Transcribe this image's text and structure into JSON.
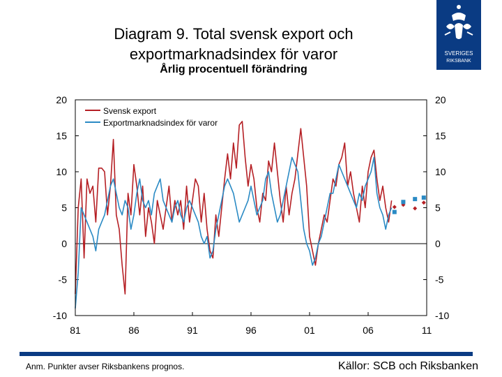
{
  "header": {
    "title_line1": "Diagram 9. Total svensk export och",
    "title_line2": "exportmarknadsindex för varor",
    "subtitle": "Årlig procentuell förändring"
  },
  "logo": {
    "icon": "riksbank-crest-icon",
    "line1": "SVERIGES",
    "line2": "RIKSBANK",
    "color": "#0a3b83"
  },
  "footer": {
    "note": "Anm. Punkter avser Riksbankens prognos.",
    "source": "Källor: SCB och Riksbanken"
  },
  "chart_data": {
    "type": "line",
    "xlim": [
      1981,
      2011
    ],
    "ylim": [
      -10,
      20
    ],
    "y_ticks": [
      "20",
      "15",
      "10",
      "5",
      "0",
      "-5",
      "-10"
    ],
    "y_tick_values": [
      20,
      15,
      10,
      5,
      0,
      -5,
      -10
    ],
    "x_ticks": [
      "81",
      "86",
      "91",
      "96",
      "01",
      "06",
      "11"
    ],
    "x_tick_values": [
      1981,
      1986,
      1991,
      1996,
      2001,
      2006,
      2011
    ],
    "legend_position": "top-left",
    "series": [
      {
        "name": "Svensk export",
        "color": "#b51f24",
        "x": [
          1981.0,
          1981.25,
          1981.5,
          1981.75,
          1982.0,
          1982.25,
          1982.5,
          1982.75,
          1983.0,
          1983.25,
          1983.5,
          1983.75,
          1984.0,
          1984.25,
          1984.5,
          1984.75,
          1985.0,
          1985.25,
          1985.5,
          1985.75,
          1986.0,
          1986.25,
          1986.5,
          1986.75,
          1987.0,
          1987.25,
          1987.5,
          1987.75,
          1988.0,
          1988.25,
          1988.5,
          1988.75,
          1989.0,
          1989.25,
          1989.5,
          1989.75,
          1990.0,
          1990.25,
          1990.5,
          1990.75,
          1991.0,
          1991.25,
          1991.5,
          1991.75,
          1992.0,
          1992.25,
          1992.5,
          1992.75,
          1993.0,
          1993.25,
          1993.5,
          1993.75,
          1994.0,
          1994.25,
          1994.5,
          1994.75,
          1995.0,
          1995.25,
          1995.5,
          1995.75,
          1996.0,
          1996.25,
          1996.5,
          1996.75,
          1997.0,
          1997.25,
          1997.5,
          1997.75,
          1998.0,
          1998.25,
          1998.5,
          1998.75,
          1999.0,
          1999.25,
          1999.5,
          1999.75,
          2000.0,
          2000.25,
          2000.5,
          2000.75,
          2001.0,
          2001.25,
          2001.5,
          2001.75,
          2002.0,
          2002.25,
          2002.5,
          2002.75,
          2003.0,
          2003.25,
          2003.5,
          2003.75,
          2004.0,
          2004.25,
          2004.5,
          2004.75,
          2005.0,
          2005.25,
          2005.5,
          2005.75,
          2006.0,
          2006.25,
          2006.5,
          2006.75,
          2007.0,
          2007.25,
          2007.5,
          2007.75,
          2008.0
        ],
        "values": [
          -7,
          5,
          9,
          -2,
          9,
          7,
          8,
          3,
          10.5,
          10.5,
          10,
          4,
          8,
          14.5,
          4,
          2,
          -3,
          -7,
          7,
          4,
          11,
          8,
          4,
          8,
          1,
          5,
          3,
          0,
          6,
          4,
          2,
          5,
          8,
          3,
          6,
          4,
          6,
          2,
          8,
          3,
          6,
          9,
          8,
          3,
          7,
          2,
          -1,
          -2,
          4,
          1,
          5,
          9,
          12.5,
          9,
          14,
          10.5,
          16.5,
          17,
          12,
          8,
          11,
          9,
          5,
          3,
          7,
          6,
          11.5,
          10,
          14,
          10,
          6,
          3,
          8,
          4,
          7,
          9,
          12.5,
          16,
          12,
          8,
          1,
          -1,
          -3,
          0,
          2,
          4,
          3,
          6,
          9,
          8,
          11,
          12,
          14,
          8,
          10,
          7,
          5,
          3,
          8,
          5,
          10,
          12,
          13,
          9,
          6,
          8,
          5,
          3,
          6
        ]
      },
      {
        "name": "Exportmarknadsindex för varor",
        "color": "#2a8ac4",
        "x": [
          1981.0,
          1981.25,
          1981.5,
          1981.75,
          1982.0,
          1982.25,
          1982.5,
          1982.75,
          1983.0,
          1983.25,
          1983.5,
          1983.75,
          1984.0,
          1984.25,
          1984.5,
          1984.75,
          1985.0,
          1985.25,
          1985.5,
          1985.75,
          1986.0,
          1986.25,
          1986.5,
          1986.75,
          1987.0,
          1987.25,
          1987.5,
          1987.75,
          1988.0,
          1988.25,
          1988.5,
          1988.75,
          1989.0,
          1989.25,
          1989.5,
          1989.75,
          1990.0,
          1990.25,
          1990.5,
          1990.75,
          1991.0,
          1991.25,
          1991.5,
          1991.75,
          1992.0,
          1992.25,
          1992.5,
          1992.75,
          1993.0,
          1993.25,
          1993.5,
          1993.75,
          1994.0,
          1994.25,
          1994.5,
          1994.75,
          1995.0,
          1995.25,
          1995.5,
          1995.75,
          1996.0,
          1996.25,
          1996.5,
          1996.75,
          1997.0,
          1997.25,
          1997.5,
          1997.75,
          1998.0,
          1998.25,
          1998.5,
          1998.75,
          1999.0,
          1999.25,
          1999.5,
          1999.75,
          2000.0,
          2000.25,
          2000.5,
          2000.75,
          2001.0,
          2001.25,
          2001.5,
          2001.75,
          2002.0,
          2002.25,
          2002.5,
          2002.75,
          2003.0,
          2003.25,
          2003.5,
          2003.75,
          2004.0,
          2004.25,
          2004.5,
          2004.75,
          2005.0,
          2005.25,
          2005.5,
          2005.75,
          2006.0,
          2006.25,
          2006.5,
          2006.75,
          2007.0,
          2007.25,
          2007.5,
          2007.75,
          2008.0
        ],
        "values": [
          -9,
          -4,
          5,
          4,
          3,
          2,
          1,
          -1,
          2,
          3,
          4,
          6,
          8,
          9,
          7,
          5,
          4,
          6,
          5,
          2,
          4,
          7,
          9,
          6,
          5,
          6,
          4,
          7,
          8,
          9,
          6,
          5,
          4,
          3,
          5,
          6,
          4,
          3,
          5,
          6,
          5,
          4,
          3,
          1,
          0,
          1,
          -2,
          -1,
          2,
          4,
          6,
          8,
          9,
          8,
          7,
          5,
          3,
          4,
          5,
          6,
          8,
          6,
          4,
          5,
          6,
          9,
          10,
          7,
          5,
          3,
          4,
          6,
          8,
          10,
          12,
          11,
          10,
          6,
          2,
          0,
          -1,
          -3,
          -2,
          0,
          1,
          3,
          5,
          7,
          7,
          9,
          11,
          10,
          9,
          8,
          7,
          6,
          5,
          7,
          6,
          8,
          9,
          10,
          12,
          7,
          5,
          4,
          2,
          4,
          5
        ]
      }
    ],
    "forecast": {
      "Svensk export": {
        "x": [
          2008.25,
          2009.0,
          2010.0,
          2010.75
        ],
        "values": [
          5.1,
          5.4,
          4.9,
          5.7
        ]
      },
      "Exportmarknadsindex för varor": {
        "x": [
          2008.25,
          2009.0,
          2010.0,
          2010.75
        ],
        "values": [
          4.4,
          5.8,
          6.2,
          6.4
        ]
      }
    }
  }
}
